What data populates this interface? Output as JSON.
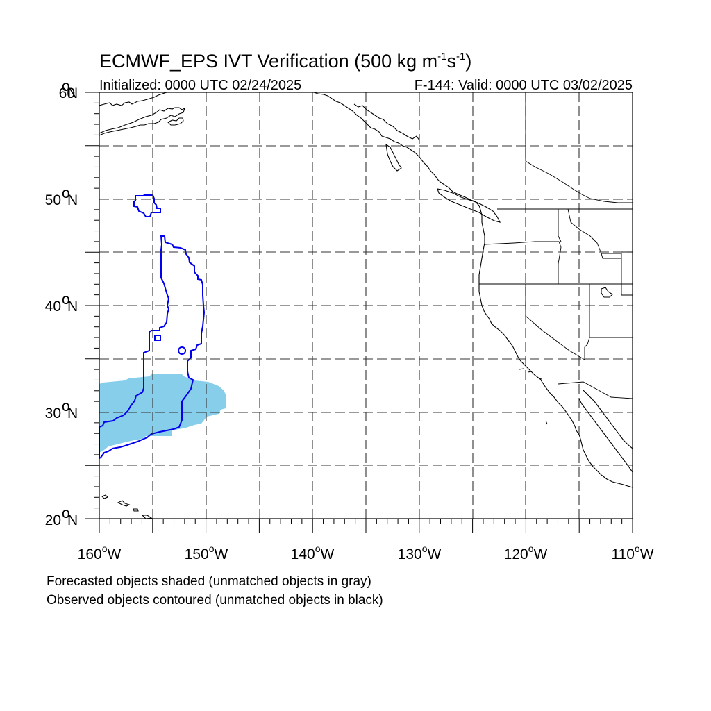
{
  "title_main": "ECMWF_EPS IVT Verification (500 kg m",
  "title_exp1": "-1",
  "title_mid": "s",
  "title_exp2": "-1",
  "title_end": ")",
  "init_text": "Initialized: 0000 UTC 02/24/2025",
  "valid_text": "F-144: Valid: 0000 UTC 03/02/2025",
  "lat_labels": [
    {
      "deg": "60",
      "suffix": "N"
    },
    {
      "deg": "50",
      "suffix": "N"
    },
    {
      "deg": "40",
      "suffix": "N"
    },
    {
      "deg": "30",
      "suffix": "N"
    },
    {
      "deg": "20",
      "suffix": "N"
    }
  ],
  "lon_labels": [
    {
      "deg": "160",
      "suffix": "W"
    },
    {
      "deg": "150",
      "suffix": "W"
    },
    {
      "deg": "140",
      "suffix": "W"
    },
    {
      "deg": "130",
      "suffix": "W"
    },
    {
      "deg": "120",
      "suffix": "W"
    },
    {
      "deg": "110",
      "suffix": "W"
    }
  ],
  "degree_symbol": "o",
  "footnote_1": "Forecasted objects shaded (unmatched objects in gray)",
  "footnote_2": "Observed objects contoured (unmatched objects in black)",
  "colors": {
    "forecast_matched": "#87ceeb",
    "observed_matched": "#0000ee"
  },
  "map_extent": {
    "lon_min": -160,
    "lon_max": -110,
    "lat_min": 20,
    "lat_max": 60
  }
}
